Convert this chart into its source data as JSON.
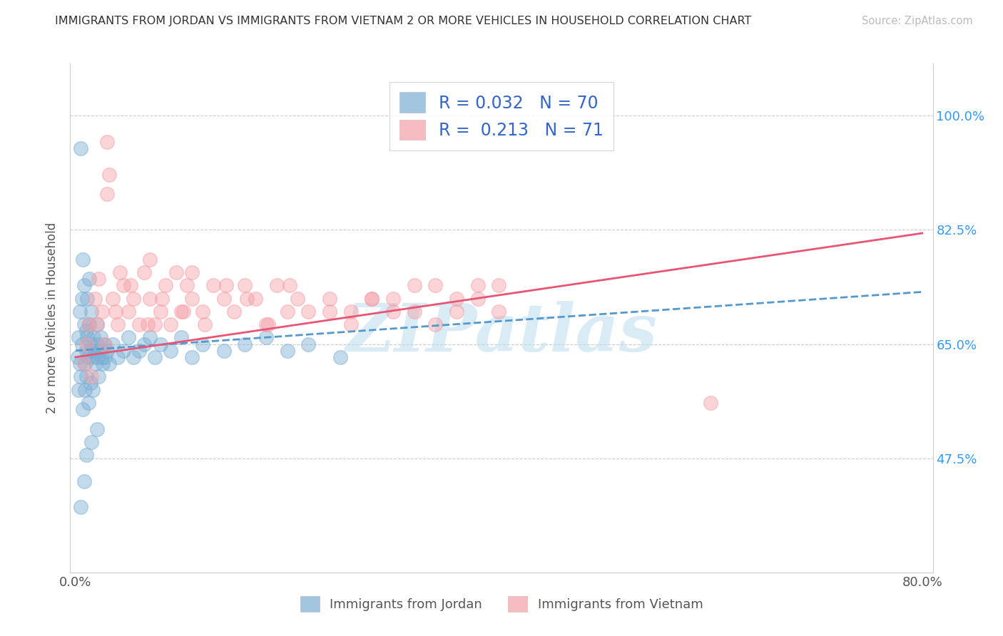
{
  "title": "IMMIGRANTS FROM JORDAN VS IMMIGRANTS FROM VIETNAM 2 OR MORE VEHICLES IN HOUSEHOLD CORRELATION CHART",
  "source": "Source: ZipAtlas.com",
  "ylabel": "2 or more Vehicles in Household",
  "xlim_min": -0.5,
  "xlim_max": 81,
  "ylim_min": 30.0,
  "ylim_max": 108.0,
  "ytick_values": [
    47.5,
    65.0,
    82.5,
    100.0
  ],
  "ytick_labels": [
    "47.5%",
    "65.0%",
    "82.5%",
    "100.0%"
  ],
  "xtick_values": [
    0,
    80
  ],
  "xtick_labels": [
    "0.0%",
    "80.0%"
  ],
  "r_jordan": 0.032,
  "n_jordan": 70,
  "r_vietnam": 0.213,
  "n_vietnam": 71,
  "color_jordan": "#7BAFD4",
  "color_vietnam": "#F4A0A8",
  "color_jordan_line": "#5599CC",
  "color_vietnam_line": "#E85575",
  "color_axis_right": "#3399FF",
  "color_text": "#333333",
  "color_source": "#AAAAAA",
  "color_grid": "#CCCCCC",
  "watermark_text": "ZIPatlas",
  "legend_label_jordan": "Immigrants from Jordan",
  "legend_label_vietnam": "Immigrants from Vietnam",
  "jordan_x": [
    0.2,
    0.3,
    0.3,
    0.4,
    0.4,
    0.5,
    0.5,
    0.6,
    0.6,
    0.7,
    0.7,
    0.8,
    0.8,
    0.9,
    0.9,
    1.0,
    1.0,
    1.0,
    1.1,
    1.1,
    1.2,
    1.2,
    1.3,
    1.3,
    1.4,
    1.4,
    1.5,
    1.5,
    1.6,
    1.6,
    1.7,
    1.8,
    1.9,
    2.0,
    2.0,
    2.1,
    2.2,
    2.3,
    2.4,
    2.5,
    2.6,
    2.7,
    2.8,
    3.0,
    3.2,
    3.5,
    4.0,
    4.5,
    5.0,
    5.5,
    6.0,
    6.5,
    7.0,
    7.5,
    8.0,
    9.0,
    10.0,
    11.0,
    12.0,
    14.0,
    16.0,
    18.0,
    20.0,
    22.0,
    25.0,
    0.5,
    0.8,
    1.0,
    1.5,
    2.0
  ],
  "jordan_y": [
    63.0,
    66.0,
    58.0,
    62.0,
    70.0,
    95.0,
    60.0,
    72.0,
    65.0,
    78.0,
    55.0,
    68.0,
    74.0,
    62.0,
    58.0,
    64.0,
    67.0,
    60.0,
    66.0,
    72.0,
    63.0,
    56.0,
    68.0,
    75.0,
    64.0,
    59.0,
    65.0,
    70.0,
    63.0,
    58.0,
    66.0,
    64.0,
    62.0,
    65.0,
    68.0,
    63.0,
    60.0,
    64.0,
    66.0,
    63.0,
    62.0,
    65.0,
    63.0,
    64.0,
    62.0,
    65.0,
    63.0,
    64.0,
    66.0,
    63.0,
    64.0,
    65.0,
    66.0,
    63.0,
    65.0,
    64.0,
    66.0,
    63.0,
    65.0,
    64.0,
    65.0,
    66.0,
    64.0,
    65.0,
    63.0,
    40.0,
    44.0,
    48.0,
    50.0,
    52.0
  ],
  "vietnam_x": [
    0.8,
    1.0,
    1.2,
    1.5,
    1.8,
    2.0,
    2.2,
    2.5,
    2.8,
    3.0,
    3.2,
    3.5,
    4.0,
    4.2,
    4.5,
    5.0,
    5.5,
    6.0,
    6.5,
    7.0,
    7.5,
    8.0,
    8.5,
    9.0,
    9.5,
    10.0,
    10.5,
    11.0,
    12.0,
    13.0,
    14.0,
    15.0,
    16.0,
    17.0,
    18.0,
    19.0,
    20.0,
    21.0,
    22.0,
    24.0,
    26.0,
    28.0,
    30.0,
    32.0,
    34.0,
    36.0,
    38.0,
    40.0,
    60.0,
    3.8,
    5.2,
    6.8,
    8.2,
    10.2,
    12.2,
    14.2,
    16.2,
    18.2,
    20.2,
    24.0,
    26.0,
    28.0,
    30.0,
    32.0,
    34.0,
    36.0,
    38.0,
    40.0,
    3.0,
    7.0,
    11.0
  ],
  "vietnam_y": [
    62.0,
    65.0,
    68.0,
    60.0,
    72.0,
    68.0,
    75.0,
    70.0,
    65.0,
    96.0,
    91.0,
    72.0,
    68.0,
    76.0,
    74.0,
    70.0,
    72.0,
    68.0,
    76.0,
    72.0,
    68.0,
    70.0,
    74.0,
    68.0,
    76.0,
    70.0,
    74.0,
    72.0,
    70.0,
    74.0,
    72.0,
    70.0,
    74.0,
    72.0,
    68.0,
    74.0,
    70.0,
    72.0,
    70.0,
    72.0,
    70.0,
    72.0,
    72.0,
    70.0,
    74.0,
    70.0,
    72.0,
    74.0,
    56.0,
    70.0,
    74.0,
    68.0,
    72.0,
    70.0,
    68.0,
    74.0,
    72.0,
    68.0,
    74.0,
    70.0,
    68.0,
    72.0,
    70.0,
    74.0,
    68.0,
    72.0,
    74.0,
    70.0,
    88.0,
    78.0,
    76.0
  ]
}
